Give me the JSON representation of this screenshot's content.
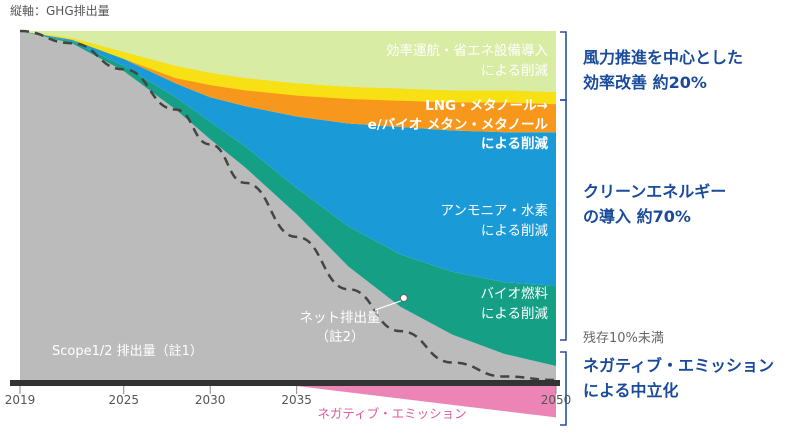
{
  "chart_data": {
    "type": "area",
    "y_axis_label": "縦軸：GHG排出量",
    "x_ticks": [
      "2019",
      "2025",
      "2030",
      "2035",
      "2050"
    ],
    "x_tick_years": [
      2019,
      2025,
      2030,
      2035,
      2050
    ],
    "x_range": [
      2019,
      2050
    ],
    "y_range": [
      -1.0,
      2.0
    ],
    "years": [
      2019,
      2022,
      2025,
      2028,
      2030,
      2032,
      2035,
      2038,
      2041,
      2044,
      2047,
      2050
    ],
    "boundaries": {
      "total": [
        2.0,
        2.0,
        2.0,
        2.0,
        2.0,
        2.0,
        2.0,
        2.0,
        2.0,
        2.0,
        2.0,
        2.0
      ],
      "after_efficiency": [
        2.0,
        1.96,
        1.88,
        1.8,
        1.76,
        1.73,
        1.7,
        1.68,
        1.67,
        1.66,
        1.66,
        1.65
      ],
      "after_lng": [
        2.0,
        1.95,
        1.84,
        1.7,
        1.62,
        1.57,
        1.51,
        1.47,
        1.45,
        1.43,
        1.42,
        1.42
      ],
      "after_ammonia": [
        2.0,
        1.94,
        1.8,
        1.62,
        1.48,
        1.34,
        1.1,
        0.88,
        0.72,
        0.62,
        0.56,
        0.54
      ],
      "after_biofuel": [
        2.0,
        1.93,
        1.77,
        1.55,
        1.38,
        1.22,
        0.95,
        0.65,
        0.42,
        0.26,
        0.15,
        0.08
      ],
      "after_negative": [
        2.0,
        1.93,
        1.77,
        1.55,
        1.38,
        1.22,
        0.95,
        0.65,
        0.42,
        0.26,
        0.15,
        0.01
      ]
    },
    "net_line": [
      2.0,
      1.93,
      1.78,
      1.55,
      1.35,
      1.13,
      0.82,
      0.52,
      0.28,
      0.1,
      0.02,
      0.0
    ],
    "negative_emission": {
      "years": [
        2035,
        2050
      ],
      "values": [
        0.0,
        -0.18
      ]
    },
    "series": [
      {
        "name": "Scope1/2 排出量（註1）",
        "color": "#bbbbbb"
      },
      {
        "name": "効率運航・省エネ設備導入による削減",
        "color": "#d8eca4"
      },
      {
        "name": "LNG・メタノール→e/バイオ メタン・メタノールによる削減",
        "color": "#f7981d"
      },
      {
        "name": "アンモニア・水素による削減",
        "color": "#1a9ad7"
      },
      {
        "name": "バイオ燃料による削減",
        "color": "#15a086"
      },
      {
        "name": "ネガティブ・エミッション",
        "color": "#ec85b6"
      }
    ],
    "area_labels": {
      "efficiency": [
        "効率運航・省エネ設備導入",
        "による削減"
      ],
      "lng": [
        "LNG・メタノール→",
        "e/バイオ メタン・メタノール",
        "による削減"
      ],
      "ammonia": [
        "アンモニア・水素",
        "による削減"
      ],
      "biofuel": [
        "バイオ燃料",
        "による削減"
      ],
      "scope": "Scope1/2 排出量（註1）",
      "net": [
        "ネット排出量",
        "（註2）"
      ],
      "negative": "ネガティブ・エミッション"
    },
    "side_labels": {
      "group1": [
        "風力推進を中心とした",
        "効率改善 約20%"
      ],
      "group2": [
        "クリーンエネルギー",
        "の導入 約70%"
      ],
      "residual": "残存10%未満",
      "group3": [
        "ネガティブ・エミッション",
        "による中立化"
      ]
    },
    "colors": {
      "axis": "#333333",
      "net_line": "#444444",
      "bracket": "#2b4fa0",
      "side_text": "#1a4b9a",
      "tick_text": "#555555",
      "yellow_band": "#f7e014"
    }
  }
}
